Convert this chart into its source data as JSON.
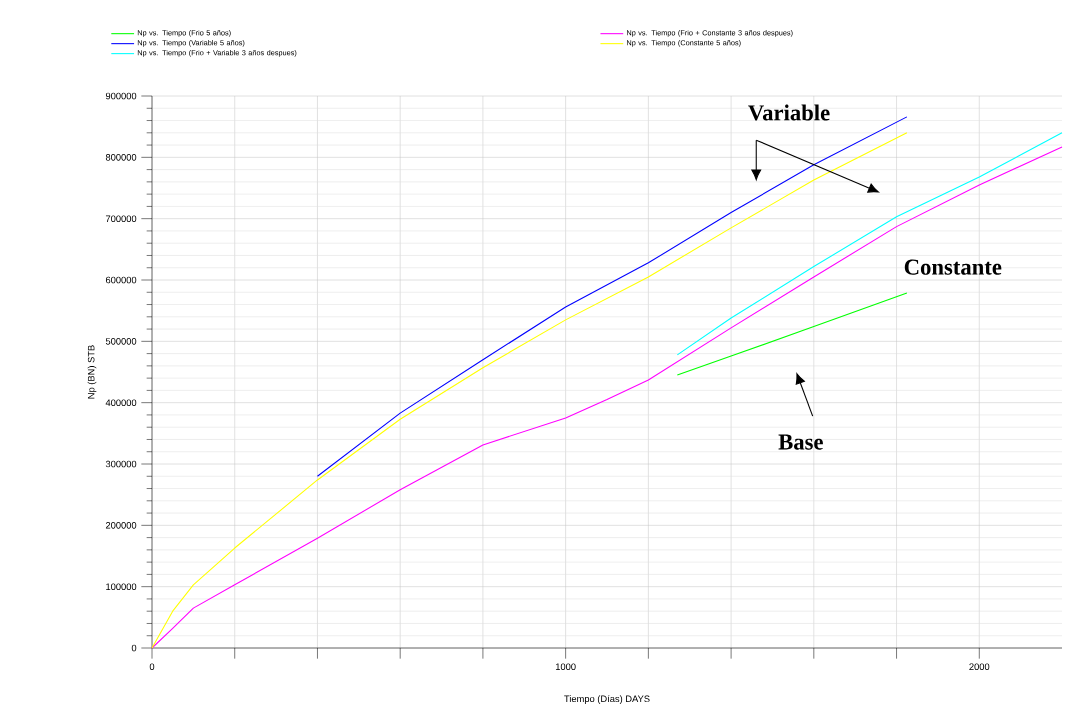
{
  "chart_data": {
    "type": "line",
    "xlabel": "Tiempo (Días)  DAYS",
    "ylabel": "Np (BN)  STB",
    "xlim": [
      0,
      2200
    ],
    "ylim": [
      0,
      900000
    ],
    "xticks": [
      0,
      {
        "value": 200,
        "label": null
      },
      {
        "value": 400,
        "label": null
      },
      {
        "value": 600,
        "label": null
      },
      {
        "value": 800,
        "label": null
      },
      1000,
      {
        "value": 1200,
        "label": null
      },
      {
        "value": 1400,
        "label": null
      },
      {
        "value": 1600,
        "label": null
      },
      {
        "value": 1800,
        "label": null
      },
      2000
    ],
    "yticks": [
      0,
      100000,
      200000,
      300000,
      400000,
      500000,
      600000,
      700000,
      800000,
      900000
    ],
    "grid": true,
    "legend": "top",
    "marker": "none",
    "line_style": "solid",
    "series": [
      {
        "name": "Np vs. Tiempo (Frio 5 años)",
        "color": "#00ff00",
        "x": [
          1270,
          1400,
          1600,
          1825
        ],
        "values": [
          445000,
          476000,
          524000,
          579000
        ]
      },
      {
        "name": "Np vs. Tiempo (Frio + Constante 3 años despues)",
        "color": "#ff00ff",
        "x": [
          0,
          50,
          100,
          200,
          400,
          600,
          800,
          1000,
          1100,
          1200,
          1400,
          1600,
          1800,
          2000,
          2200
        ],
        "values": [
          0,
          32000,
          65000,
          103000,
          179000,
          258000,
          331000,
          375000,
          405000,
          437000,
          522000,
          605000,
          687000,
          755000,
          817000
        ]
      },
      {
        "name": "Np vs. Tiempo (Variable 5 años)",
        "color": "#0000ff",
        "x": [
          400,
          600,
          800,
          1000,
          1200,
          1400,
          1600,
          1825
        ],
        "values": [
          280000,
          383000,
          470000,
          556000,
          628000,
          710000,
          788000,
          866000
        ]
      },
      {
        "name": "Np vs. Tiempo (Constante 5 años)",
        "color": "#ffff00",
        "x": [
          0,
          50,
          100,
          200,
          400,
          600,
          800,
          1000,
          1200,
          1400,
          1600,
          1825
        ],
        "values": [
          0,
          60000,
          103000,
          163000,
          274000,
          373000,
          457000,
          535000,
          605000,
          685000,
          763000,
          840000
        ]
      },
      {
        "name": "Np vs. Tiempo (Frio + Variable 3 años despues)",
        "color": "#00ffff",
        "x": [
          1270,
          1400,
          1600,
          1800,
          2000,
          2200
        ],
        "values": [
          478000,
          538000,
          622000,
          703000,
          768000,
          840000
        ]
      }
    ],
    "annotations": [
      "Variable",
      "Constante",
      "Base"
    ]
  }
}
